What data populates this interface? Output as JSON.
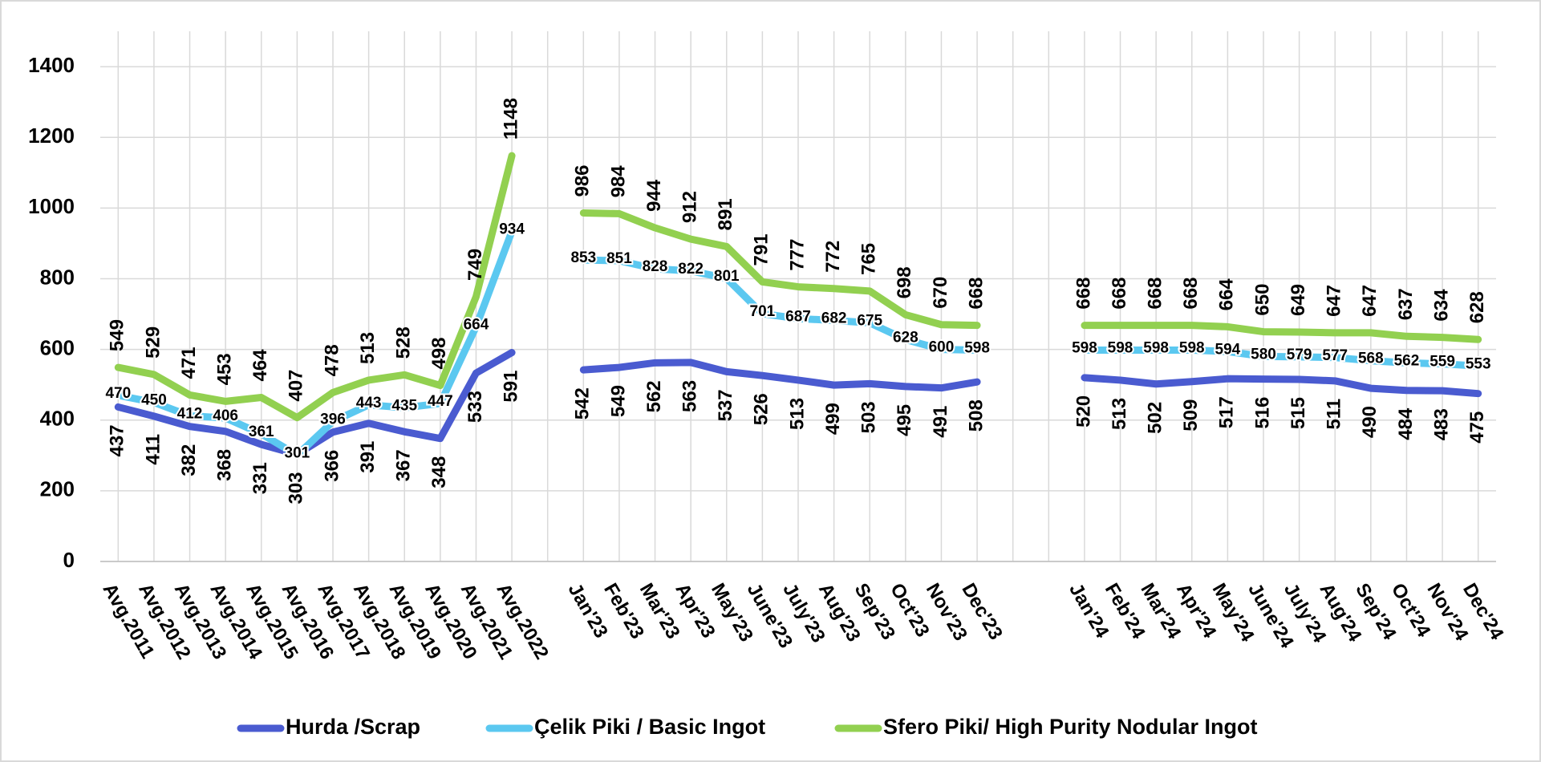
{
  "chart_data": {
    "type": "line",
    "categories": [
      "Avg.2011",
      "Avg.2012",
      "Avg.2013",
      "Avg.2014",
      "Avg.2015",
      "Avg.2016",
      "Avg.2017",
      "Avg.2018",
      "Avg.2019",
      "Avg.2020",
      "Avg.2021",
      "Avg.2022",
      null,
      "Jan'23",
      "Feb'23",
      "Mar'23",
      "Apr'23",
      "May'23",
      "June'23",
      "July'23",
      "Aug'23",
      "Sep'23",
      "Oct'23",
      "Nov'23",
      "Dec'23",
      null,
      null,
      "Jan'24",
      "Feb'24",
      "Mar'24",
      "Apr'24",
      "May'24",
      "June'24",
      "July'24",
      "Aug'24",
      "Sep'24",
      "Oct'24",
      "Nov'24",
      "Dec'24"
    ],
    "series": [
      {
        "name": "Hurda /Scrap",
        "color": "#4a5bd0",
        "values": [
          437,
          411,
          382,
          368,
          331,
          303,
          366,
          391,
          367,
          348,
          533,
          591,
          null,
          542,
          549,
          562,
          563,
          537,
          526,
          513,
          499,
          503,
          495,
          491,
          508,
          null,
          null,
          520,
          513,
          502,
          509,
          517,
          516,
          515,
          511,
          490,
          484,
          483,
          475
        ]
      },
      {
        "name": "Çelik Piki / Basic Ingot",
        "color": "#5bc8f0",
        "values": [
          470,
          450,
          412,
          406,
          361,
          301,
          396,
          443,
          435,
          447,
          664,
          934,
          null,
          853,
          851,
          828,
          822,
          801,
          701,
          687,
          682,
          675,
          628,
          600,
          598,
          null,
          null,
          598,
          598,
          598,
          598,
          594,
          580,
          579,
          577,
          568,
          562,
          559,
          553
        ]
      },
      {
        "name": "Sfero Piki/ High Purity Nodular Ingot",
        "color": "#92d050",
        "values": [
          549,
          529,
          471,
          453,
          464,
          407,
          478,
          513,
          528,
          498,
          749,
          1148,
          null,
          986,
          984,
          944,
          912,
          891,
          791,
          777,
          772,
          765,
          698,
          670,
          668,
          null,
          null,
          668,
          668,
          668,
          668,
          664,
          650,
          649,
          647,
          647,
          637,
          634,
          628
        ]
      }
    ],
    "ylim": [
      0,
      1500
    ],
    "yticks": [
      0,
      200,
      400,
      600,
      800,
      1000,
      1200,
      1400
    ],
    "grid": true,
    "legend": "bottom"
  }
}
